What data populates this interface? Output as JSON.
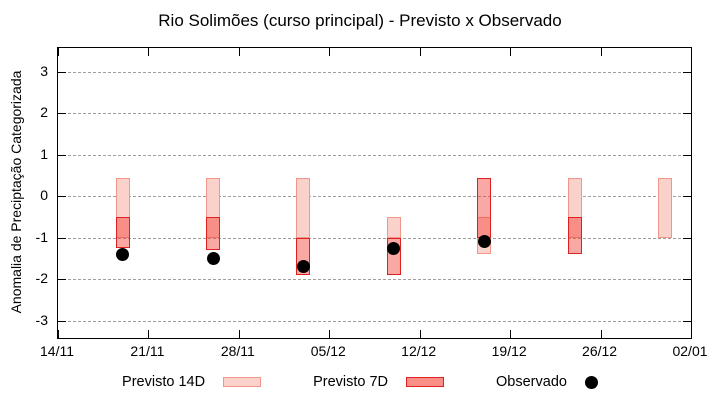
{
  "title": "Rio Solimões (curso principal) - Previsto x Observado",
  "colors": {
    "p14_fill": "#fbd2cb",
    "p14_border": "#f0968b",
    "p7_fill": "rgba(242,63,51,0.45)",
    "p7_legend_fill": "#f98f86",
    "p7_border": "#dd2020",
    "observed": "#000000",
    "grid": "#9e9e9e",
    "axis": "#000000"
  },
  "legend": {
    "p14_label": "Previsto 14D",
    "p7_label": "Previsto 7D",
    "obs_label": "Observado"
  },
  "chart_data": {
    "type": "bar",
    "subtype": "range-bars-with-observed-dots",
    "title": "Rio Solimões (curso principal) - Previsto x Observado",
    "xlabel": "",
    "ylabel": "Anomalia de Preciptação Categorizada",
    "ylim": [
      -3.42,
      3.58
    ],
    "yticks": [
      3,
      2,
      1,
      0,
      -1,
      -2,
      -3
    ],
    "grid": "horizontal-dashed",
    "legend_position": "bottom-outside",
    "x_axis": {
      "domain_days": [
        0,
        49
      ],
      "tick_days": [
        0,
        7,
        14,
        21,
        28,
        35,
        42,
        49
      ],
      "tick_labels": [
        "14/11",
        "21/11",
        "28/11",
        "05/12",
        "12/12",
        "19/12",
        "26/12",
        "02/01"
      ]
    },
    "series": [
      {
        "name": "Previsto 14D",
        "kind": "range-bar",
        "points": [
          {
            "date": "19/11",
            "day": 5,
            "low": -1.0,
            "high": 0.45
          },
          {
            "date": "26/11",
            "day": 12,
            "low": -1.0,
            "high": 0.45
          },
          {
            "date": "03/12",
            "day": 19,
            "low": -1.0,
            "high": 0.45
          },
          {
            "date": "10/12",
            "day": 26,
            "low": -1.0,
            "high": -0.5
          },
          {
            "date": "17/12",
            "day": 33,
            "low": -1.4,
            "high": -0.5
          },
          {
            "date": "24/12",
            "day": 40,
            "low": -1.0,
            "high": 0.45
          },
          {
            "date": "31/12",
            "day": 47,
            "low": -1.0,
            "high": 0.45
          }
        ]
      },
      {
        "name": "Previsto 7D",
        "kind": "range-bar",
        "points": [
          {
            "date": "19/11",
            "day": 5,
            "low": -1.25,
            "high": -0.5
          },
          {
            "date": "26/11",
            "day": 12,
            "low": -1.3,
            "high": -0.5
          },
          {
            "date": "03/12",
            "day": 19,
            "low": -1.9,
            "high": -1.0
          },
          {
            "date": "10/12",
            "day": 26,
            "low": -1.9,
            "high": -1.0
          },
          {
            "date": "17/12",
            "day": 33,
            "low": -1.0,
            "high": 0.45
          },
          {
            "date": "24/12",
            "day": 40,
            "low": -1.4,
            "high": -0.5
          }
        ]
      },
      {
        "name": "Observado",
        "kind": "dot",
        "points": [
          {
            "date": "19/11",
            "day": 5,
            "value": -1.4
          },
          {
            "date": "26/11",
            "day": 12,
            "value": -1.5
          },
          {
            "date": "03/12",
            "day": 19,
            "value": -1.7
          },
          {
            "date": "10/12",
            "day": 26,
            "value": -1.25
          },
          {
            "date": "17/12",
            "day": 33,
            "value": -1.1
          }
        ]
      }
    ]
  }
}
